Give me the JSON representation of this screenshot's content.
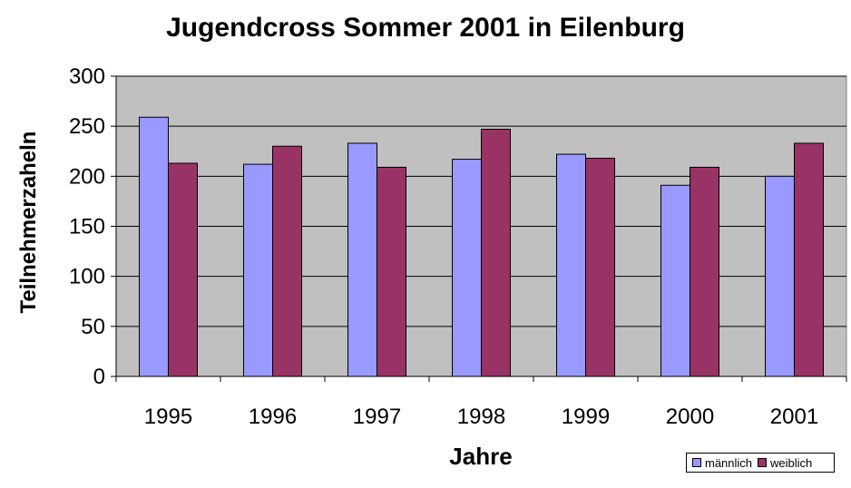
{
  "chart_data": {
    "type": "bar",
    "title": "Jugendcross Sommer 2001 in Eilenburg",
    "xlabel": "Jahre",
    "ylabel": "Teilnehmerzaheln",
    "categories": [
      "1995",
      "1996",
      "1997",
      "1998",
      "1999",
      "2000",
      "2001"
    ],
    "series": [
      {
        "name": "männlich",
        "color": "#9999ff",
        "values": [
          259,
          212,
          233,
          217,
          222,
          191,
          200
        ]
      },
      {
        "name": "weiblich",
        "color": "#993366",
        "values": [
          213,
          230,
          209,
          247,
          218,
          209,
          233
        ]
      }
    ],
    "ylim": [
      0,
      300
    ],
    "yticks": [
      0,
      50,
      100,
      150,
      200,
      250,
      300
    ],
    "grid": true,
    "plot_background": "#c0c0c0",
    "legend_position": "bottom-right"
  }
}
